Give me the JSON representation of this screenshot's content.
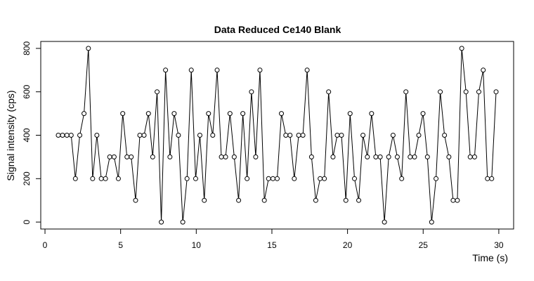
{
  "chart_data": {
    "type": "line",
    "title": "Data Reduced Ce140 Blank",
    "x_label": "Time (s)",
    "y_label": "Signal intensity (cps)",
    "x": [
      0.88,
      1.16,
      1.45,
      1.73,
      2.01,
      2.3,
      2.58,
      2.87,
      3.15,
      3.43,
      3.72,
      4.0,
      4.28,
      4.57,
      4.85,
      5.14,
      5.42,
      5.7,
      5.99,
      6.27,
      6.55,
      6.84,
      7.12,
      7.41,
      7.69,
      7.97,
      8.26,
      8.54,
      8.82,
      9.11,
      9.39,
      9.67,
      9.96,
      10.24,
      10.53,
      10.81,
      11.09,
      11.38,
      11.66,
      11.94,
      12.23,
      12.51,
      12.8,
      13.08,
      13.36,
      13.65,
      13.93,
      14.21,
      14.5,
      14.78,
      15.07,
      15.35,
      15.63,
      15.92,
      16.2,
      16.48,
      16.77,
      17.05,
      17.33,
      17.62,
      17.9,
      18.19,
      18.47,
      18.75,
      19.04,
      19.32,
      19.6,
      19.89,
      20.17,
      20.46,
      20.74,
      21.02,
      21.31,
      21.59,
      21.87,
      22.16,
      22.44,
      22.72,
      23.01,
      23.29,
      23.58,
      23.86,
      24.14,
      24.43,
      24.71,
      24.99,
      25.28,
      25.56,
      25.85,
      26.13,
      26.41,
      26.7,
      26.98,
      27.26,
      27.55,
      27.83,
      28.11,
      28.4,
      28.68,
      28.97,
      29.25,
      29.53,
      29.82
    ],
    "series": [
      {
        "color": "#000000",
        "values": [
          400,
          400,
          400,
          400,
          200,
          400,
          500,
          800,
          200,
          400,
          200,
          200,
          300,
          300,
          200,
          500,
          300,
          300,
          100,
          400,
          400,
          500,
          300,
          600,
          0,
          700,
          300,
          500,
          400,
          0,
          200,
          700,
          200,
          400,
          100,
          500,
          400,
          700,
          300,
          300,
          500,
          300,
          100,
          500,
          200,
          600,
          300,
          700,
          100,
          200,
          200,
          200,
          500,
          400,
          400,
          200,
          400,
          400,
          700,
          300,
          100,
          200,
          200,
          600,
          300,
          400,
          400,
          100,
          500,
          200,
          100,
          400,
          300,
          500,
          300,
          300,
          0,
          300,
          400,
          300,
          200,
          600,
          300,
          300,
          400,
          500,
          300,
          0,
          200,
          600,
          400,
          300,
          100,
          100,
          800,
          600,
          300,
          300,
          600,
          700,
          200,
          200,
          600
        ]
      }
    ],
    "xlim": [
      -0.28,
      30.98
    ],
    "ylim": [
      -32,
      832
    ],
    "xticks": [
      0,
      5,
      10,
      15,
      20,
      25,
      30
    ],
    "yticks": [
      0,
      200,
      400,
      600,
      800
    ]
  }
}
